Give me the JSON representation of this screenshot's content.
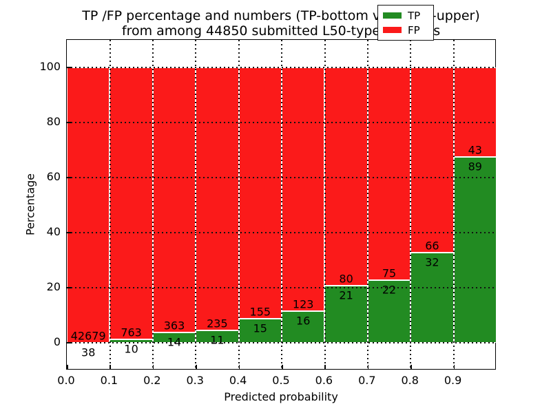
{
  "title": {
    "line1": "TP /FP percentage and numbers (TP-bottom value, FP-upper)",
    "line2": "from among 44850 submitted L50-type contacts"
  },
  "axes": {
    "xlabel": "Predicted probability",
    "ylabel": "Percentage"
  },
  "legend": {
    "items": [
      {
        "label": "TP",
        "color": "#228b22",
        "swatch": "green-rect-icon"
      },
      {
        "label": "FP",
        "color": "#fb1a1a",
        "swatch": "red-rect-icon"
      }
    ],
    "position": "upper right"
  },
  "chart_data": {
    "type": "bar",
    "stacked": true,
    "normalized_to_percent": true,
    "title": "TP /FP percentage and numbers (TP-bottom value, FP-upper) from among 44850 submitted L50-type contacts",
    "xlabel": "Predicted probability",
    "ylabel": "Percentage",
    "xlim": [
      0.0,
      1.0
    ],
    "ylim": [
      -10,
      110
    ],
    "grid": "dotted",
    "bin_width": 0.1,
    "bin_starts": [
      0.0,
      0.1,
      0.2,
      0.3,
      0.4,
      0.5,
      0.6,
      0.7,
      0.8,
      0.9
    ],
    "x_ticks": [
      0.0,
      0.1,
      0.2,
      0.3,
      0.4,
      0.5,
      0.6,
      0.7,
      0.8,
      0.9
    ],
    "x_tick_labels": [
      "0.0",
      "0.1",
      "0.2",
      "0.3",
      "0.4",
      "0.5",
      "0.6",
      "0.7",
      "0.8",
      "0.9"
    ],
    "y_ticks": [
      0,
      20,
      40,
      60,
      80,
      100
    ],
    "y_tick_labels": [
      "0",
      "20",
      "40",
      "60",
      "80",
      "100"
    ],
    "series": [
      {
        "name": "TP",
        "color": "#228b22",
        "counts": [
          38,
          10,
          14,
          11,
          15,
          16,
          21,
          22,
          32,
          89
        ]
      },
      {
        "name": "FP",
        "color": "#fb1a1a",
        "counts": [
          42679,
          763,
          363,
          235,
          155,
          123,
          80,
          75,
          66,
          43
        ]
      }
    ],
    "tp_percent_of_bin": [
      0.09,
      1.29,
      3.71,
      4.47,
      8.82,
      11.51,
      20.79,
      22.68,
      32.65,
      67.42
    ],
    "total_submitted": 44850
  }
}
